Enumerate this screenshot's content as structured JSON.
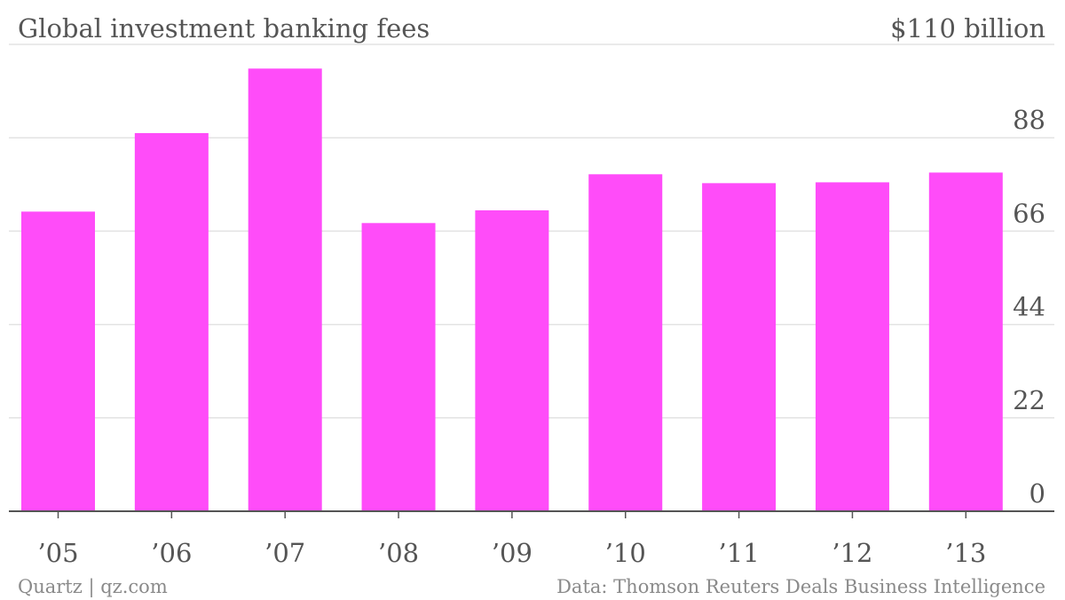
{
  "chart_data": {
    "type": "bar",
    "title": "Global investment banking fees",
    "top_label": "$110 billion",
    "categories": [
      "’05",
      "’06",
      "’07",
      "’08",
      "’09",
      "’10",
      "’11",
      "’12",
      "’13"
    ],
    "values": [
      70.6,
      89.1,
      104.3,
      67.9,
      70.9,
      79.4,
      77.3,
      77.5,
      79.8
    ],
    "ylim": [
      0,
      110
    ],
    "yticks": [
      0,
      22,
      44,
      66,
      88
    ],
    "ytick_labels": [
      "0",
      "22",
      "44",
      "66",
      "88"
    ],
    "bar_color": "#ff4cf9",
    "grid": true,
    "y_axis_side": "right"
  },
  "footer": {
    "credit": "Quartz | qz.com",
    "source": "Data: Thomson Reuters Deals Business Intelligence"
  }
}
